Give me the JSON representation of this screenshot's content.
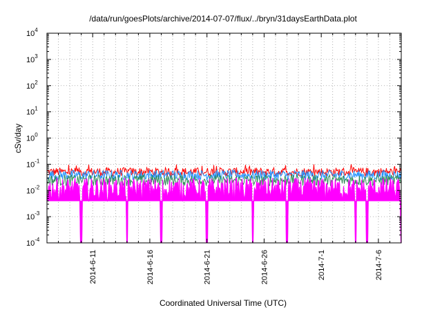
{
  "chart_data": {
    "type": "line",
    "title": "/data/run/goesPlots/archive/2014-07-07/flux/../bryn/31daysEarthData.plot",
    "xlabel": "Coordinated Universal Time (UTC)",
    "ylabel": "cSv/day",
    "x_scale": "date",
    "y_scale": "log",
    "xlim": [
      "2014-06-07",
      "2014-07-08"
    ],
    "ylim": [
      0.0001,
      10000
    ],
    "grid": true,
    "legend": "none",
    "x_ticks": [
      {
        "date": "2014-06-11",
        "label": "2014-6-11"
      },
      {
        "date": "2014-06-16",
        "label": "2014-6-16"
      },
      {
        "date": "2014-06-21",
        "label": "2014-6-21"
      },
      {
        "date": "2014-06-26",
        "label": "2014-6-26"
      },
      {
        "date": "2014-07-01",
        "label": "2014-7-1"
      },
      {
        "date": "2014-07-06",
        "label": "2014-7-6"
      }
    ],
    "y_ticks": [
      {
        "value": 0.0001,
        "base": "10",
        "exp": "-4"
      },
      {
        "value": 0.001,
        "base": "10",
        "exp": "-3"
      },
      {
        "value": 0.01,
        "base": "10",
        "exp": "-2"
      },
      {
        "value": 0.1,
        "base": "10",
        "exp": "-1"
      },
      {
        "value": 1,
        "base": "10",
        "exp": "0"
      },
      {
        "value": 10,
        "base": "10",
        "exp": "1"
      },
      {
        "value": 100,
        "base": "10",
        "exp": "2"
      },
      {
        "value": 1000,
        "base": "10",
        "exp": "3"
      },
      {
        "value": 10000,
        "base": "10",
        "exp": "4"
      }
    ],
    "series": [
      {
        "color": "#ff0000",
        "typical_range": [
          0.035,
          0.075
        ],
        "peak": 0.1
      },
      {
        "color": "#1e90ff",
        "typical_range": [
          0.025,
          0.06
        ]
      },
      {
        "color": "#2e8b57",
        "typical_range": [
          0.015,
          0.04
        ]
      },
      {
        "color": "#ff00ff",
        "typical_range": [
          0.004,
          0.03
        ],
        "dropouts": [
          "2014-06-10",
          "2014-06-14",
          "2014-06-17",
          "2014-06-21",
          "2014-06-25",
          "2014-06-28",
          "2014-07-04",
          "2014-07-05",
          "2014-07-08"
        ]
      }
    ]
  }
}
